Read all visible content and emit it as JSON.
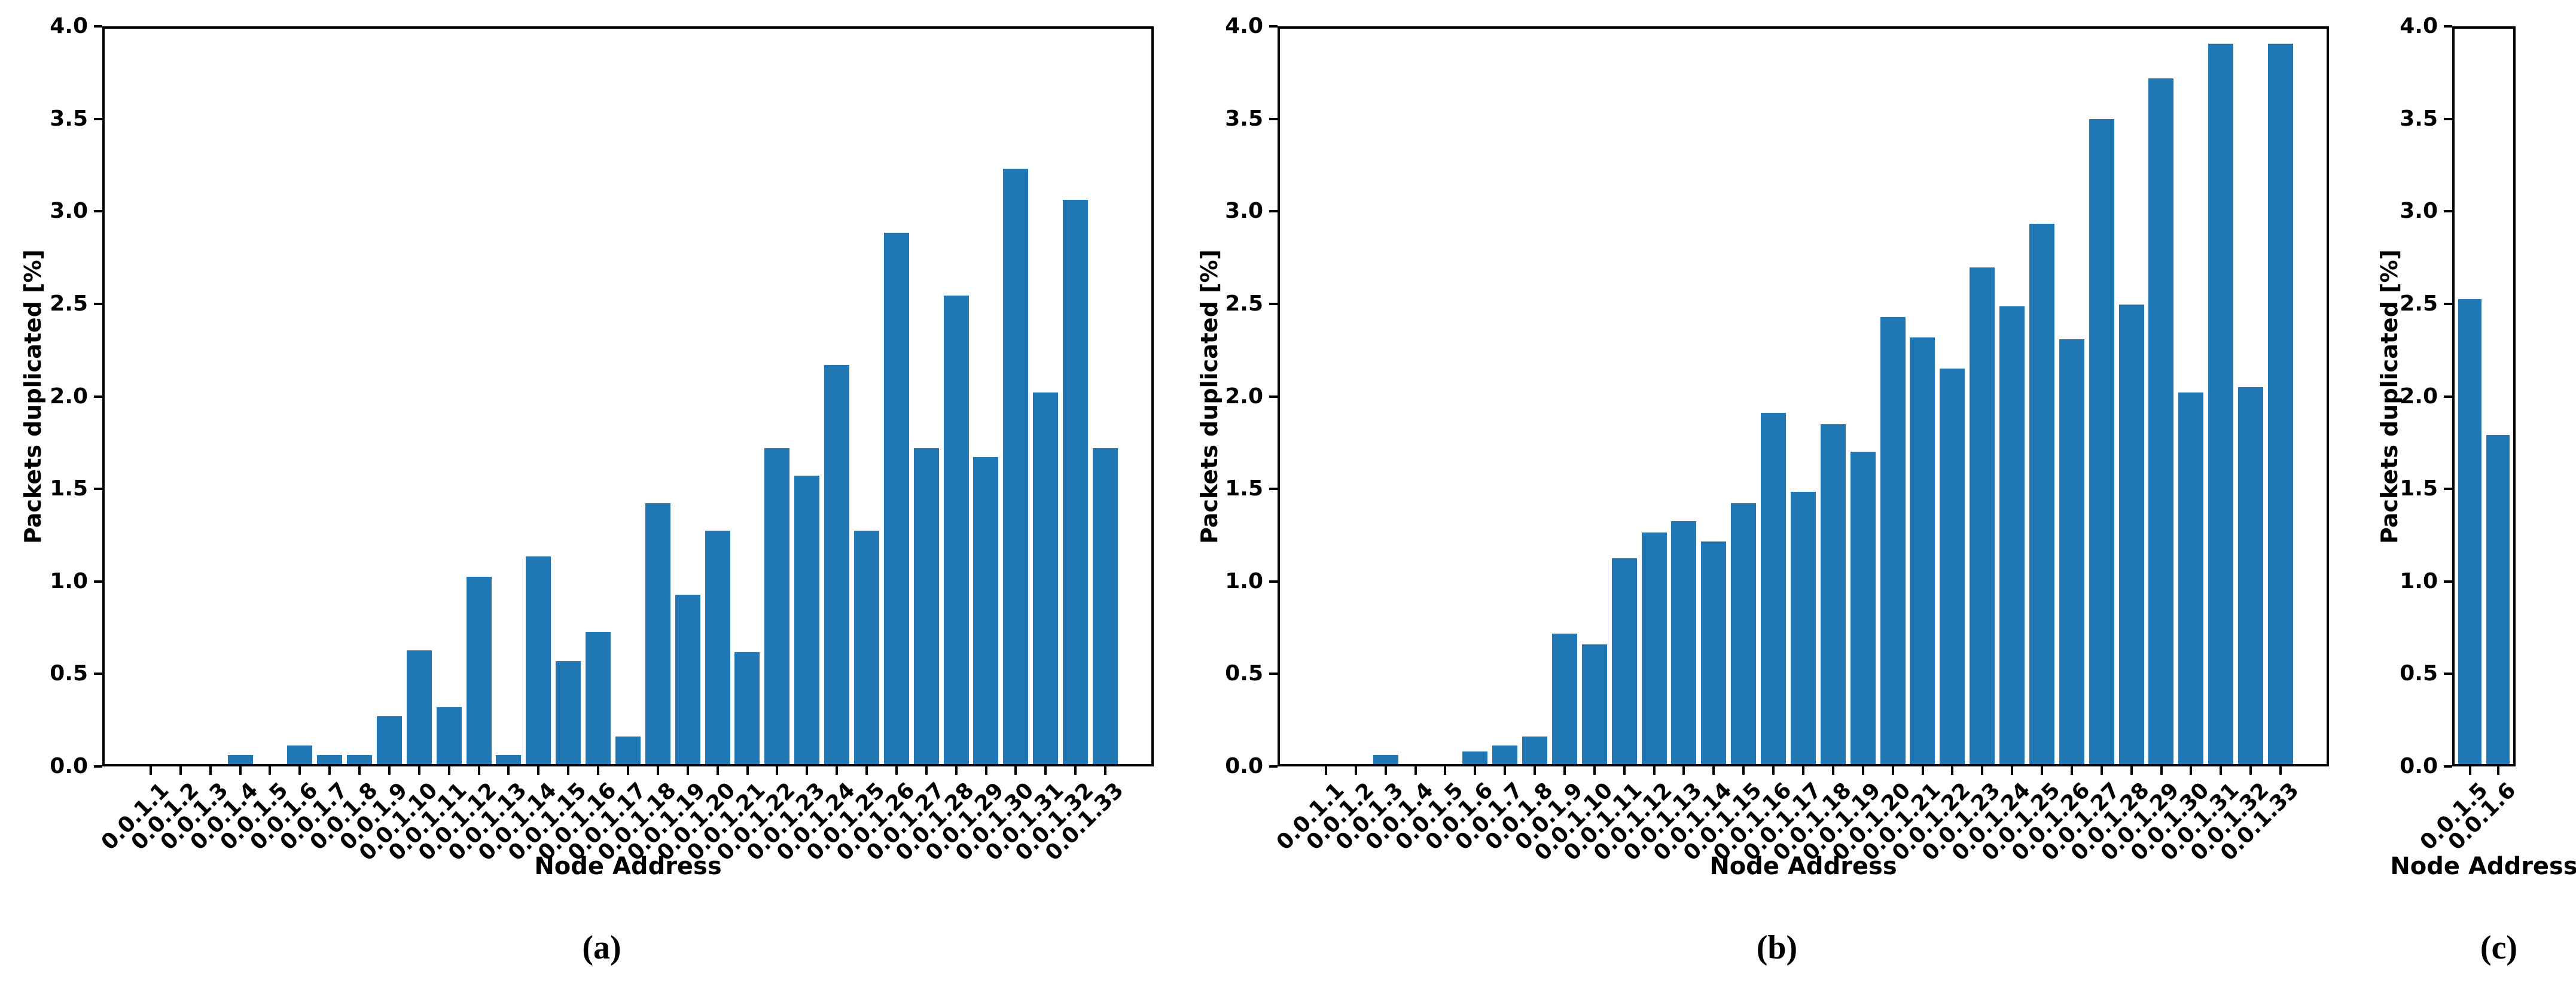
{
  "figure": {
    "background": "#ffffff",
    "bar_color": "#1f77b4",
    "axis_color": "#000000"
  },
  "chart_data": [
    {
      "type": "bar",
      "caption": "(a)",
      "xlabel": "Node Address",
      "ylabel": "Packets duplicated [%]",
      "ylim": [
        0.0,
        4.0
      ],
      "grid": false,
      "legend": null,
      "yticks": [
        0.0,
        0.5,
        1.0,
        1.5,
        2.0,
        2.5,
        3.0,
        3.5,
        4.0
      ],
      "ytick_labels": [
        "0.0",
        "0.5",
        "1.0",
        "1.5",
        "2.0",
        "2.5",
        "3.0",
        "3.5",
        "4.0"
      ],
      "categories": [
        "0.0.1.1",
        "0.0.1.2",
        "0.0.1.3",
        "0.0.1.4",
        "0.0.1.5",
        "0.0.1.6",
        "0.0.1.7",
        "0.0.1.8",
        "0.0.1.9",
        "0.0.1.10",
        "0.0.1.11",
        "0.0.1.12",
        "0.0.1.13",
        "0.0.1.14",
        "0.0.1.15",
        "0.0.1.16",
        "0.0.1.17",
        "0.0.1.18",
        "0.0.1.19",
        "0.0.1.20",
        "0.0.1.21",
        "0.0.1.22",
        "0.0.1.23",
        "0.0.1.24",
        "0.0.1.25",
        "0.0.1.26",
        "0.0.1.27",
        "0.0.1.28",
        "0.0.1.29",
        "0.0.1.30",
        "0.0.1.31",
        "0.0.1.32",
        "0.0.1.33"
      ],
      "values": [
        0.0,
        0.0,
        0.0,
        0.05,
        0.0,
        0.1,
        0.05,
        0.05,
        0.26,
        0.62,
        0.31,
        1.02,
        0.05,
        1.13,
        0.56,
        0.72,
        0.15,
        1.42,
        0.92,
        1.27,
        0.61,
        1.72,
        1.57,
        2.17,
        1.27,
        2.89,
        1.72,
        2.55,
        1.67,
        3.24,
        2.02,
        3.07,
        1.72
      ]
    },
    {
      "type": "bar",
      "caption": "(b)",
      "xlabel": "Node Address",
      "ylabel": "Packets duplicated [%]",
      "ylim": [
        0.0,
        4.0
      ],
      "grid": false,
      "legend": null,
      "yticks": [
        0.0,
        0.5,
        1.0,
        1.5,
        2.0,
        2.5,
        3.0,
        3.5,
        4.0
      ],
      "ytick_labels": [
        "0.0",
        "0.5",
        "1.0",
        "1.5",
        "2.0",
        "2.5",
        "3.0",
        "3.5",
        "4.0"
      ],
      "categories": [
        "0.0.1.1",
        "0.0.1.2",
        "0.0.1.3",
        "0.0.1.4",
        "0.0.1.5",
        "0.0.1.6",
        "0.0.1.7",
        "0.0.1.8",
        "0.0.1.9",
        "0.0.1.10",
        "0.0.1.11",
        "0.0.1.12",
        "0.0.1.13",
        "0.0.1.14",
        "0.0.1.15",
        "0.0.1.16",
        "0.0.1.17",
        "0.0.1.18",
        "0.0.1.19",
        "0.0.1.20",
        "0.0.1.21",
        "0.0.1.22",
        "0.0.1.23",
        "0.0.1.24",
        "0.0.1.25",
        "0.0.1.26",
        "0.0.1.27",
        "0.0.1.28",
        "0.0.1.29",
        "0.0.1.30",
        "0.0.1.31",
        "0.0.1.32",
        "0.0.1.33"
      ],
      "values": [
        0.0,
        0.0,
        0.05,
        0.0,
        0.0,
        0.07,
        0.1,
        0.15,
        0.71,
        0.65,
        1.12,
        1.26,
        1.32,
        1.21,
        1.42,
        1.91,
        1.48,
        1.85,
        1.7,
        2.43,
        2.32,
        2.15,
        2.7,
        2.49,
        2.94,
        2.31,
        3.51,
        2.5,
        3.73,
        2.02,
        3.92,
        2.05,
        3.92
      ]
    },
    {
      "type": "bar",
      "caption": "(c)",
      "xlabel": "Node Address",
      "ylabel": "Packets duplicated [%]",
      "ylim": [
        0.0,
        4.0
      ],
      "grid": false,
      "legend": null,
      "yticks": [
        0.0,
        0.5,
        1.0,
        1.5,
        2.0,
        2.5,
        3.0,
        3.5,
        4.0
      ],
      "ytick_labels": [
        "0.0",
        "0.5",
        "1.0",
        "1.5",
        "2.0",
        "2.5",
        "3.0",
        "3.5",
        "4.0"
      ],
      "categories": [
        "0.0.1.5",
        "0.0.1.6"
      ],
      "values": [
        2.53,
        1.79
      ]
    }
  ]
}
